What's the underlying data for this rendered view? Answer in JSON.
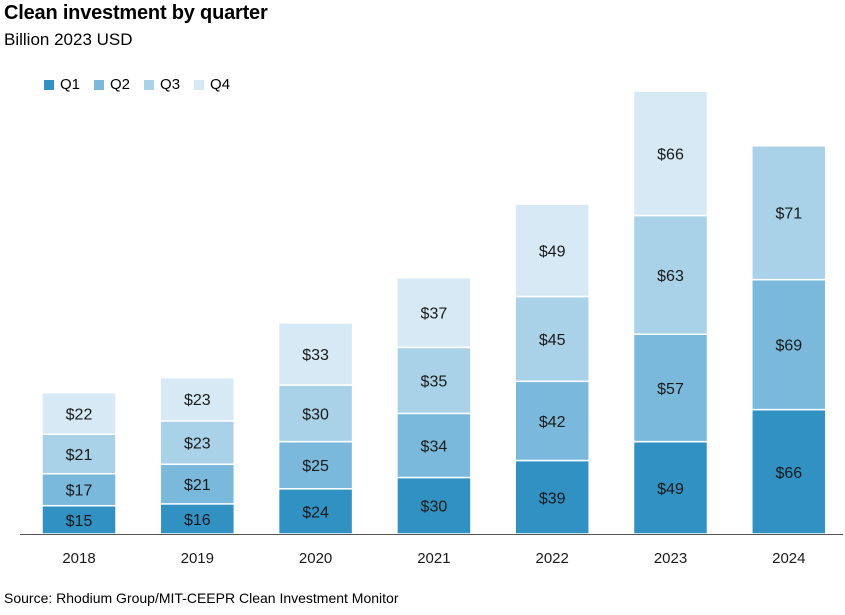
{
  "chart_data": {
    "type": "bar",
    "stacked": true,
    "title": "Clean investment by quarter",
    "subtitle": "Billion 2023 USD",
    "categories": [
      "2018",
      "2019",
      "2020",
      "2021",
      "2022",
      "2023",
      "2024"
    ],
    "series": [
      {
        "name": "Q1",
        "color": "#3191c2",
        "values": [
          15,
          16,
          24,
          30,
          39,
          49,
          66
        ],
        "labels": [
          "$15",
          "$16",
          "$24",
          "$30",
          "$39",
          "$49",
          "$66"
        ]
      },
      {
        "name": "Q2",
        "color": "#7ab9dc",
        "values": [
          17,
          21,
          25,
          34,
          42,
          57,
          69
        ],
        "labels": [
          "$17",
          "$21",
          "$25",
          "$34",
          "$42",
          "$57",
          "$69"
        ]
      },
      {
        "name": "Q3",
        "color": "#a9d1e7",
        "values": [
          21,
          23,
          30,
          35,
          45,
          63,
          71
        ],
        "labels": [
          "$21",
          "$23",
          "$30",
          "$35",
          "$45",
          "$63",
          "$71"
        ]
      },
      {
        "name": "Q4",
        "color": "#d6e9f4",
        "values": [
          22,
          23,
          33,
          37,
          49,
          66,
          null
        ],
        "labels": [
          "$22",
          "$23",
          "$33",
          "$37",
          "$49",
          "$66",
          null
        ]
      }
    ],
    "ylim": [
      0,
      235
    ],
    "grid": false,
    "legend_position": "top-left",
    "source": "Source: Rhodium Group/MIT-CEEPR Clean Investment Monitor"
  }
}
